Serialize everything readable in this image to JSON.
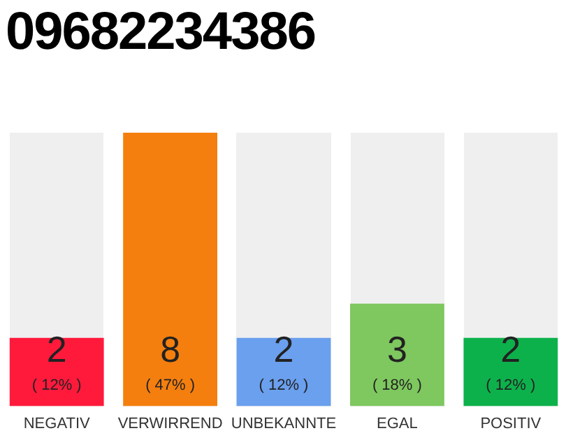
{
  "chart_data": {
    "type": "bar",
    "title": "09682234386",
    "categories": [
      "NEGATIV",
      "VERWIRREND",
      "UNBEKANNTE",
      "EGAL",
      "POSITIV"
    ],
    "values": [
      2,
      8,
      2,
      3,
      2
    ],
    "colors": [
      "#ff1a3c",
      "#f47f0e",
      "#6aa0ee",
      "#7ec85f",
      "#0db14b"
    ],
    "value_labels": [
      "2",
      "8",
      "2",
      "3",
      "2"
    ],
    "annotations": [
      "( 12% )",
      "( 47% )",
      "( 12% )",
      "( 18% )",
      "( 12% )"
    ],
    "tick_labels": "x",
    "grid": false,
    "legend": false
  }
}
